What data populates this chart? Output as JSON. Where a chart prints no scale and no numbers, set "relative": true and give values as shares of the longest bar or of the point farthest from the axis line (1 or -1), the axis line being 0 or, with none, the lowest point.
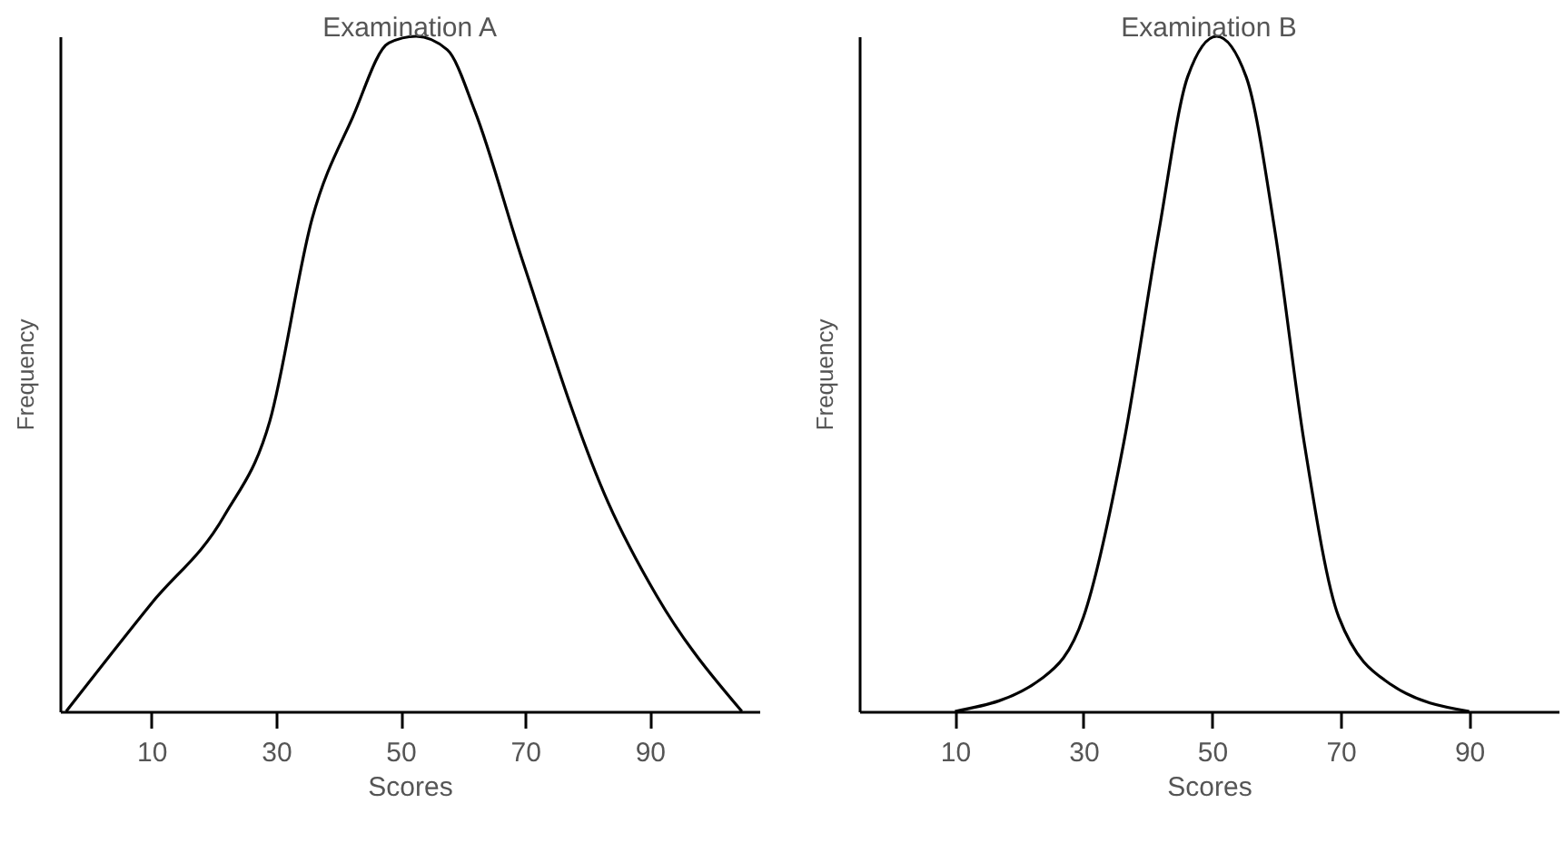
{
  "chart_data": [
    {
      "type": "line",
      "title": "Examination A",
      "xlabel": "Scores",
      "ylabel": "Frequency",
      "relative": true,
      "xlim": [
        -4.7,
        107.6
      ],
      "xticks": [
        10,
        30,
        50,
        70,
        90
      ],
      "x": [
        -3.7,
        10,
        21.7,
        29,
        35.8,
        42.3,
        48.1,
        52.5,
        57.5,
        61.9,
        69.5,
        83.3,
        91.2,
        104.8
      ],
      "series": [
        {
          "color": "#000000",
          "values": [
            0,
            0.16,
            0.29,
            0.43,
            0.73,
            0.88,
            0.99,
            1,
            0.98,
            0.89,
            0.67,
            0.31,
            0.17,
            0
          ]
        }
      ]
    },
    {
      "type": "line",
      "title": "Examination B",
      "xlabel": "Scores",
      "ylabel": "Frequency",
      "relative": true,
      "xlim": [
        -4.9,
        103.9
      ],
      "xticks": [
        10,
        30,
        50,
        70,
        90
      ],
      "x": [
        10,
        23.7,
        30,
        36.3,
        41.7,
        46.2,
        50.7,
        55.3,
        59.8,
        64.3,
        69.7,
        77.8,
        90
      ],
      "series": [
        {
          "color": "#000000",
          "values": [
            0,
            0.05,
            0.14,
            0.4,
            0.71,
            0.94,
            1,
            0.94,
            0.71,
            0.4,
            0.14,
            0.04,
            0
          ]
        }
      ]
    }
  ]
}
